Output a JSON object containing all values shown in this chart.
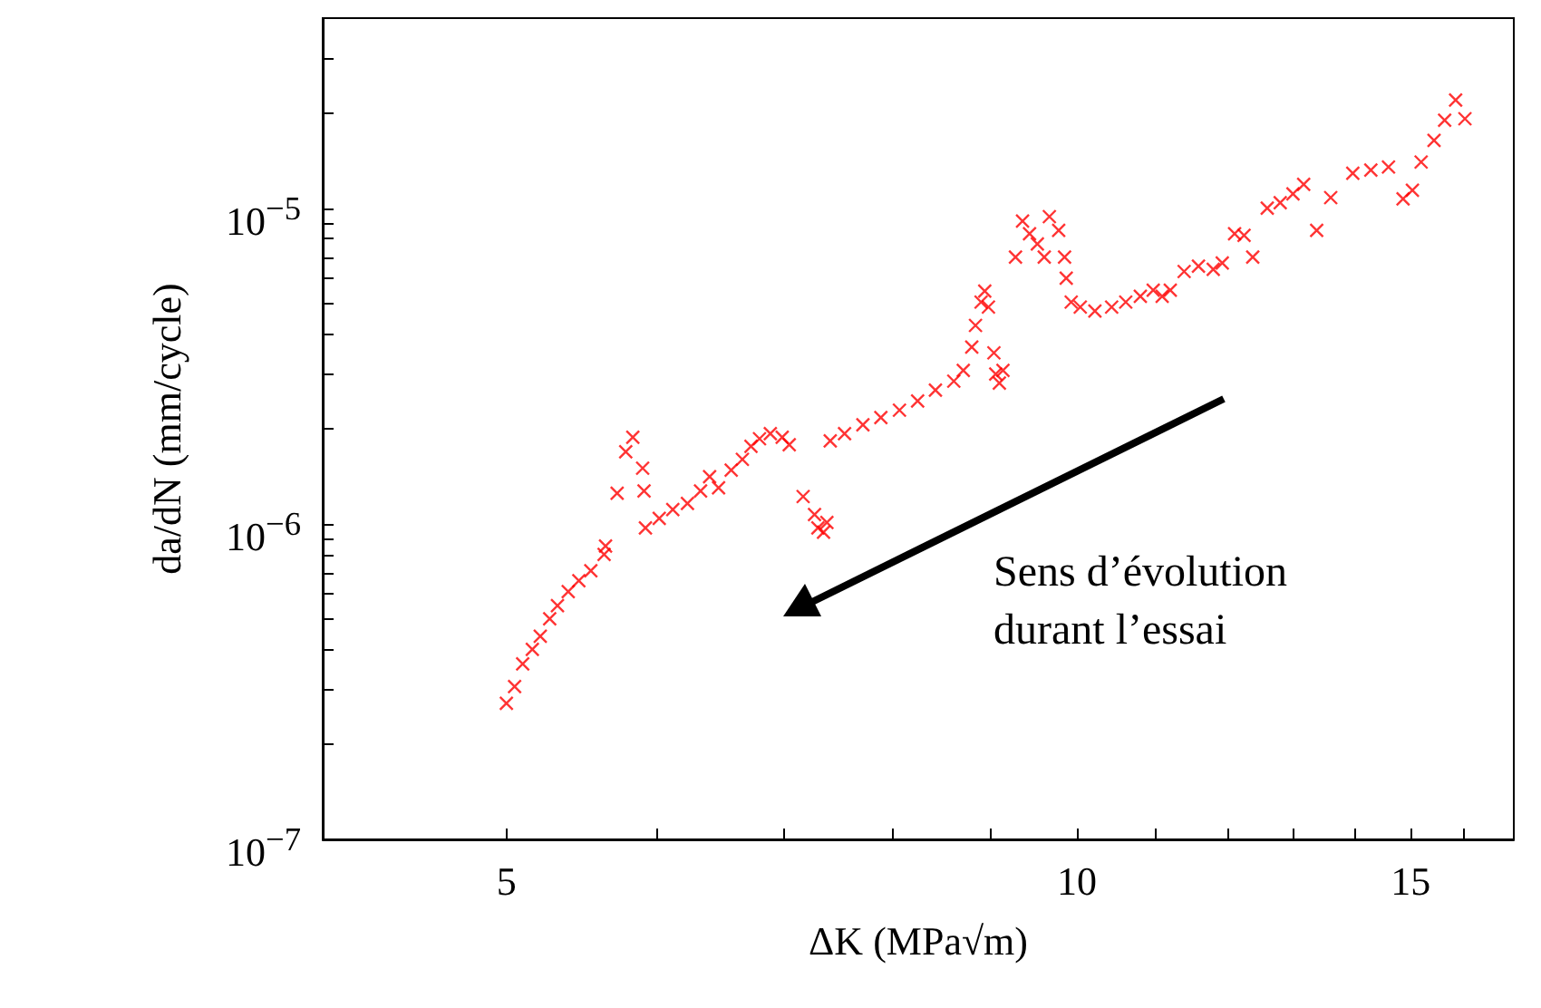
{
  "chart_data": {
    "type": "scatter",
    "xlabel": "ΔK (MPa√m)",
    "ylabel": "da/dN (mm/cycle)",
    "log": "xy",
    "grid": false,
    "marker": "cross",
    "xlim": [
      4,
      17
    ],
    "ylim": [
      1e-07,
      4e-05
    ],
    "xticks": [
      5,
      {
        "value": 6,
        "label": null
      },
      {
        "value": 7,
        "label": null
      },
      {
        "value": 8,
        "label": null
      },
      {
        "value": 9,
        "label": null
      },
      10,
      {
        "value": 11,
        "label": null
      },
      {
        "value": 12,
        "label": null
      },
      {
        "value": 13,
        "label": null
      },
      {
        "value": 14,
        "label": null
      },
      15,
      {
        "value": 16,
        "label": null
      }
    ],
    "yticks": [
      {
        "value": 1e-07,
        "label": "10$^{−7}$"
      },
      {
        "value": 2e-07,
        "label": null
      },
      {
        "value": 3e-07,
        "label": null
      },
      {
        "value": 4e-07,
        "label": null
      },
      {
        "value": 5e-07,
        "label": null
      },
      {
        "value": 6e-07,
        "label": null
      },
      {
        "value": 7e-07,
        "label": null
      },
      {
        "value": 8e-07,
        "label": null
      },
      {
        "value": 9e-07,
        "label": null
      },
      {
        "value": 1e-06,
        "label": "10$^{−6}$"
      },
      {
        "value": 2e-06,
        "label": null
      },
      {
        "value": 3e-06,
        "label": null
      },
      {
        "value": 4e-06,
        "label": null
      },
      {
        "value": 5e-06,
        "label": null
      },
      {
        "value": 6e-06,
        "label": null
      },
      {
        "value": 7e-06,
        "label": null
      },
      {
        "value": 8e-06,
        "label": null
      },
      {
        "value": 9e-06,
        "label": null
      },
      {
        "value": 1e-05,
        "label": "10$^{−5}$"
      },
      {
        "value": 2e-05,
        "label": null
      },
      {
        "value": 3e-05,
        "label": null
      }
    ],
    "annotations": [
      "Sens d’évolution\ndurant l’essai"
    ],
    "series": [
      {
        "color": "#ff0000",
        "x": [
          5.0,
          5.05,
          5.1,
          5.16,
          5.21,
          5.27,
          5.32,
          5.39,
          5.46,
          5.54,
          5.63,
          5.64,
          5.72,
          5.78,
          5.83,
          5.9,
          5.91,
          5.92,
          6.02,
          6.12,
          6.23,
          6.33,
          6.4,
          6.47,
          6.57,
          6.66,
          6.73,
          6.8,
          6.89,
          6.99,
          7.05,
          7.17,
          7.27,
          7.3,
          7.35,
          7.38,
          7.41,
          7.54,
          7.71,
          7.88,
          8.06,
          8.24,
          8.42,
          8.61,
          8.71,
          8.8,
          8.84,
          8.9,
          8.94,
          8.98,
          9.04,
          9.06,
          9.1,
          9.14,
          9.28,
          9.36,
          9.44,
          9.53,
          9.61,
          9.67,
          9.78,
          9.85,
          9.87,
          9.93,
          10.04,
          10.22,
          10.43,
          10.61,
          10.8,
          10.97,
          11.09,
          11.2,
          11.39,
          11.59,
          11.8,
          11.93,
          12.11,
          12.25,
          12.38,
          12.6,
          12.8,
          13.0,
          13.17,
          13.38,
          13.61,
          13.98,
          14.29,
          14.6,
          14.86,
          15.03,
          15.19,
          15.43,
          15.63,
          15.84,
          16.02
        ],
        "values": [
          2.7e-07,
          3.05e-07,
          3.6e-07,
          4e-07,
          4.4e-07,
          5e-07,
          5.5e-07,
          6.1e-07,
          6.6e-07,
          7.1e-07,
          8e-07,
          8.5e-07,
          1.25e-06,
          1.69e-06,
          1.88e-06,
          1.5e-06,
          1.27e-06,
          9.7e-07,
          1.04e-06,
          1.11e-06,
          1.16e-06,
          1.27e-06,
          1.41e-06,
          1.3e-06,
          1.48e-06,
          1.6e-06,
          1.76e-06,
          1.86e-06,
          1.93e-06,
          1.88e-06,
          1.78e-06,
          1.22e-06,
          1.07e-06,
          9.7e-07,
          9.4e-07,
          1.01e-06,
          1.83e-06,
          1.93e-06,
          2.06e-06,
          2.17e-06,
          2.29e-06,
          2.45e-06,
          2.65e-06,
          2.83e-06,
          3.06e-06,
          3.63e-06,
          4.25e-06,
          5.04e-06,
          5.46e-06,
          4.86e-06,
          3.48e-06,
          2.98e-06,
          2.79e-06,
          3.06e-06,
          7e-06,
          9.1e-06,
          8.3e-06,
          7.7e-06,
          7e-06,
          9.4e-06,
          8.5e-06,
          7e-06,
          6e-06,
          5.04e-06,
          4.86e-06,
          4.72e-06,
          4.86e-06,
          5.04e-06,
          5.26e-06,
          5.5e-06,
          5.26e-06,
          5.5e-06,
          6.3e-06,
          6.55e-06,
          6.4e-06,
          6.7e-06,
          8.3e-06,
          8.2e-06,
          7e-06,
          1e-05,
          1.04e-05,
          1.11e-05,
          1.19e-05,
          8.5e-06,
          1.08e-05,
          1.29e-05,
          1.32e-05,
          1.35e-05,
          1.07e-05,
          1.14e-05,
          1.4e-05,
          1.64e-05,
          1.9e-05,
          2.2e-05,
          1.92e-05
        ]
      }
    ]
  }
}
